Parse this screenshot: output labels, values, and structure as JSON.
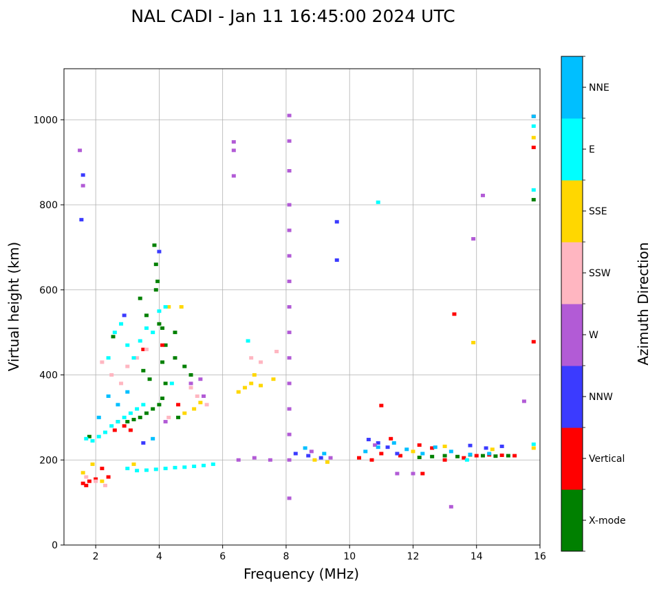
{
  "chart_data": {
    "type": "scatter",
    "title": "NAL CADI - Jan 11 16:45:00 2024 UTC",
    "xlabel": "Frequency (MHz)",
    "ylabel": "Virtual height (km)",
    "xlim": [
      1,
      16
    ],
    "ylim": [
      0,
      1120
    ],
    "xticks": [
      2,
      4,
      6,
      8,
      10,
      12,
      14,
      16
    ],
    "yticks": [
      0,
      200,
      400,
      600,
      800,
      1000
    ],
    "grid": true,
    "colorbar": {
      "label": "Azimuth Direction",
      "categories": [
        {
          "name": "X-mode",
          "color": "#008000"
        },
        {
          "name": "Vertical",
          "color": "#ff0000"
        },
        {
          "name": "NNW",
          "color": "#3b3bff"
        },
        {
          "name": "W",
          "color": "#b25bd6"
        },
        {
          "name": "SSW",
          "color": "#ffb6c1"
        },
        {
          "name": "SSE",
          "color": "#ffd700"
        },
        {
          "name": "E",
          "color": "#00ffff"
        },
        {
          "name": "NNE",
          "color": "#00bfff"
        }
      ]
    },
    "series": [
      {
        "name": "X-mode",
        "points": [
          [
            2.55,
            490
          ],
          [
            3.4,
            580
          ],
          [
            3.6,
            540
          ],
          [
            3.9,
            600
          ],
          [
            4.0,
            520
          ],
          [
            4.1,
            510
          ],
          [
            4.2,
            470
          ],
          [
            4.1,
            430
          ],
          [
            4.2,
            380
          ],
          [
            4.1,
            345
          ],
          [
            4.0,
            330
          ],
          [
            3.8,
            320
          ],
          [
            3.6,
            310
          ],
          [
            3.4,
            300
          ],
          [
            3.2,
            295
          ],
          [
            3.0,
            290
          ],
          [
            4.5,
            440
          ],
          [
            4.5,
            500
          ],
          [
            4.8,
            420
          ],
          [
            5.0,
            400
          ],
          [
            4.6,
            300
          ],
          [
            3.5,
            410
          ],
          [
            3.7,
            390
          ],
          [
            1.8,
            255
          ],
          [
            12.2,
            206
          ],
          [
            12.6,
            208
          ],
          [
            13.0,
            210
          ],
          [
            13.4,
            208
          ],
          [
            13.8,
            212
          ],
          [
            14.2,
            210
          ],
          [
            14.6,
            209
          ],
          [
            15.0,
            210
          ],
          [
            15.8,
            812
          ],
          [
            3.85,
            705
          ],
          [
            3.9,
            660
          ],
          [
            3.95,
            620
          ]
        ]
      },
      {
        "name": "Vertical",
        "points": [
          [
            1.6,
            145
          ],
          [
            1.7,
            140
          ],
          [
            1.8,
            150
          ],
          [
            2.0,
            155
          ],
          [
            2.7,
            290
          ],
          [
            2.9,
            280
          ],
          [
            3.1,
            270
          ],
          [
            2.6,
            270
          ],
          [
            2.2,
            180
          ],
          [
            2.4,
            160
          ],
          [
            3.5,
            460
          ],
          [
            4.1,
            470
          ],
          [
            4.6,
            330
          ],
          [
            10.3,
            205
          ],
          [
            10.7,
            200
          ],
          [
            11.0,
            215
          ],
          [
            11.3,
            250
          ],
          [
            11.6,
            210
          ],
          [
            12.2,
            235
          ],
          [
            12.6,
            228
          ],
          [
            13.0,
            200
          ],
          [
            13.3,
            543
          ],
          [
            13.6,
            205
          ],
          [
            14.0,
            210
          ],
          [
            14.4,
            212
          ],
          [
            14.8,
            211
          ],
          [
            15.2,
            210
          ],
          [
            15.8,
            1008
          ],
          [
            15.8,
            935
          ],
          [
            15.8,
            478
          ],
          [
            11.0,
            328
          ],
          [
            12.3,
            168
          ]
        ]
      },
      {
        "name": "NNW",
        "points": [
          [
            1.55,
            765
          ],
          [
            1.6,
            870
          ],
          [
            3.5,
            240
          ],
          [
            4.0,
            690
          ],
          [
            8.3,
            215
          ],
          [
            8.7,
            210
          ],
          [
            9.1,
            205
          ],
          [
            9.6,
            760
          ],
          [
            9.6,
            670
          ],
          [
            10.6,
            248
          ],
          [
            10.9,
            240
          ],
          [
            11.2,
            230
          ],
          [
            11.5,
            215
          ],
          [
            13.8,
            234
          ],
          [
            14.3,
            228
          ],
          [
            14.8,
            232
          ],
          [
            2.9,
            540
          ]
        ]
      },
      {
        "name": "W",
        "points": [
          [
            1.5,
            928
          ],
          [
            1.6,
            845
          ],
          [
            6.35,
            948
          ],
          [
            6.35,
            928
          ],
          [
            6.35,
            868
          ],
          [
            6.5,
            200
          ],
          [
            7.0,
            205
          ],
          [
            7.5,
            200
          ],
          [
            8.1,
            1010
          ],
          [
            8.1,
            950
          ],
          [
            8.1,
            880
          ],
          [
            8.1,
            800
          ],
          [
            8.1,
            740
          ],
          [
            8.1,
            680
          ],
          [
            8.1,
            620
          ],
          [
            8.1,
            560
          ],
          [
            8.1,
            500
          ],
          [
            8.1,
            440
          ],
          [
            8.1,
            380
          ],
          [
            8.1,
            320
          ],
          [
            8.1,
            260
          ],
          [
            8.1,
            200
          ],
          [
            8.1,
            110
          ],
          [
            8.8,
            220
          ],
          [
            9.4,
            205
          ],
          [
            10.8,
            235
          ],
          [
            11.5,
            168
          ],
          [
            12.0,
            168
          ],
          [
            13.2,
            90
          ],
          [
            13.9,
            720
          ],
          [
            14.2,
            822
          ],
          [
            15.5,
            338
          ],
          [
            5.3,
            390
          ],
          [
            5.0,
            380
          ],
          [
            5.4,
            350
          ],
          [
            4.2,
            290
          ]
        ]
      },
      {
        "name": "SSW",
        "points": [
          [
            1.7,
            160
          ],
          [
            2.0,
            150
          ],
          [
            2.2,
            430
          ],
          [
            2.5,
            400
          ],
          [
            2.8,
            380
          ],
          [
            3.0,
            420
          ],
          [
            3.3,
            440
          ],
          [
            3.6,
            460
          ],
          [
            4.3,
            300
          ],
          [
            5.0,
            370
          ],
          [
            5.2,
            350
          ],
          [
            5.5,
            330
          ],
          [
            6.9,
            440
          ],
          [
            7.2,
            430
          ],
          [
            7.7,
            455
          ],
          [
            2.3,
            140
          ]
        ]
      },
      {
        "name": "SSE",
        "points": [
          [
            1.6,
            170
          ],
          [
            1.9,
            190
          ],
          [
            2.2,
            150
          ],
          [
            3.2,
            190
          ],
          [
            4.3,
            560
          ],
          [
            4.7,
            560
          ],
          [
            4.8,
            310
          ],
          [
            5.1,
            320
          ],
          [
            5.3,
            335
          ],
          [
            6.5,
            360
          ],
          [
            6.7,
            370
          ],
          [
            6.9,
            380
          ],
          [
            7.0,
            400
          ],
          [
            7.2,
            375
          ],
          [
            7.6,
            390
          ],
          [
            8.9,
            200
          ],
          [
            9.3,
            195
          ],
          [
            12.0,
            220
          ],
          [
            13.0,
            232
          ],
          [
            13.9,
            476
          ],
          [
            14.5,
            225
          ],
          [
            15.8,
            958
          ],
          [
            15.8,
            228
          ]
        ]
      },
      {
        "name": "E",
        "points": [
          [
            1.7,
            250
          ],
          [
            1.9,
            245
          ],
          [
            2.1,
            255
          ],
          [
            2.3,
            265
          ],
          [
            2.5,
            280
          ],
          [
            2.7,
            290
          ],
          [
            2.9,
            300
          ],
          [
            3.1,
            310
          ],
          [
            3.3,
            320
          ],
          [
            3.5,
            330
          ],
          [
            2.6,
            500
          ],
          [
            2.8,
            520
          ],
          [
            3.0,
            470
          ],
          [
            3.2,
            440
          ],
          [
            3.4,
            480
          ],
          [
            3.6,
            510
          ],
          [
            3.8,
            500
          ],
          [
            4.0,
            550
          ],
          [
            4.2,
            560
          ],
          [
            4.4,
            380
          ],
          [
            2.4,
            440
          ],
          [
            3.0,
            180
          ],
          [
            3.3,
            175
          ],
          [
            3.6,
            176
          ],
          [
            3.9,
            178
          ],
          [
            4.2,
            180
          ],
          [
            4.5,
            182
          ],
          [
            4.8,
            183
          ],
          [
            5.1,
            185
          ],
          [
            5.4,
            187
          ],
          [
            5.7,
            190
          ],
          [
            6.8,
            480
          ],
          [
            10.9,
            806
          ],
          [
            15.8,
            985
          ],
          [
            15.8,
            835
          ],
          [
            15.8,
            237
          ],
          [
            13.7,
            200
          ]
        ]
      },
      {
        "name": "NNE",
        "points": [
          [
            2.1,
            300
          ],
          [
            2.4,
            350
          ],
          [
            2.7,
            330
          ],
          [
            3.0,
            360
          ],
          [
            3.8,
            250
          ],
          [
            8.6,
            228
          ],
          [
            9.2,
            215
          ],
          [
            10.5,
            220
          ],
          [
            10.9,
            230
          ],
          [
            11.4,
            240
          ],
          [
            11.8,
            225
          ],
          [
            12.3,
            215
          ],
          [
            12.7,
            230
          ],
          [
            13.2,
            220
          ],
          [
            13.8,
            213
          ],
          [
            14.4,
            215
          ],
          [
            15.8,
            1008
          ]
        ]
      }
    ]
  }
}
